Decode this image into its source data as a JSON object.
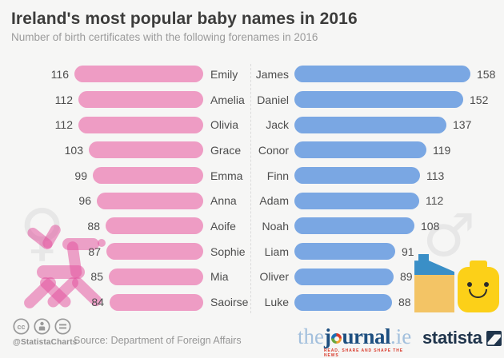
{
  "header": {
    "title": "Ireland's most popular baby names in 2016",
    "subtitle": "Number of birth certificates with the following forenames in 2016"
  },
  "chart_data": [
    {
      "type": "bar",
      "orientation": "horizontal",
      "series_name": "Girls",
      "bar_color": "#ee9cc4",
      "categories": [
        "Emily",
        "Amelia",
        "Olivia",
        "Grace",
        "Emma",
        "Anna",
        "Aoife",
        "Sophie",
        "Mia",
        "Saoirse"
      ],
      "values": [
        116,
        112,
        112,
        103,
        99,
        96,
        88,
        87,
        85,
        84
      ],
      "value_label_position": "left-of-bar",
      "bars_aligned": "right"
    },
    {
      "type": "bar",
      "orientation": "horizontal",
      "series_name": "Boys",
      "bar_color": "#7aa7e3",
      "categories": [
        "James",
        "Daniel",
        "Jack",
        "Conor",
        "Finn",
        "Adam",
        "Noah",
        "Liam",
        "Oliver",
        "Luke"
      ],
      "values": [
        158,
        152,
        137,
        119,
        113,
        112,
        108,
        91,
        89,
        88
      ],
      "value_label_position": "right-of-bar",
      "bars_aligned": "left"
    }
  ],
  "decor": {
    "female_symbol": "♀",
    "male_symbol": "♂"
  },
  "footer": {
    "license_icons": [
      "cc-icon",
      "attribution-icon",
      "equal-icon"
    ],
    "credit": "@StatistaCharts",
    "source": "Source: Department of Foreign Affairs",
    "journal_logo": {
      "the": "the",
      "journal_j": "j",
      "journal_rest": "urnal",
      "dot_ie": ".ie",
      "tagline": "READ, SHARE AND SHAPE THE NEWS"
    },
    "statista_label": "statista"
  },
  "colors": {
    "background": "#f6f6f5",
    "girls_bar": "#ee9cc4",
    "boys_bar": "#7aa7e3",
    "title_text": "#3c3c3b",
    "subtitle_text": "#9b9b9b",
    "label_text": "#4d4d4d",
    "statista_navy": "#20354c",
    "journal_blue": "#1d4f80",
    "journal_light_blue": "#a3c0dd",
    "journal_red": "#d93a2b"
  }
}
